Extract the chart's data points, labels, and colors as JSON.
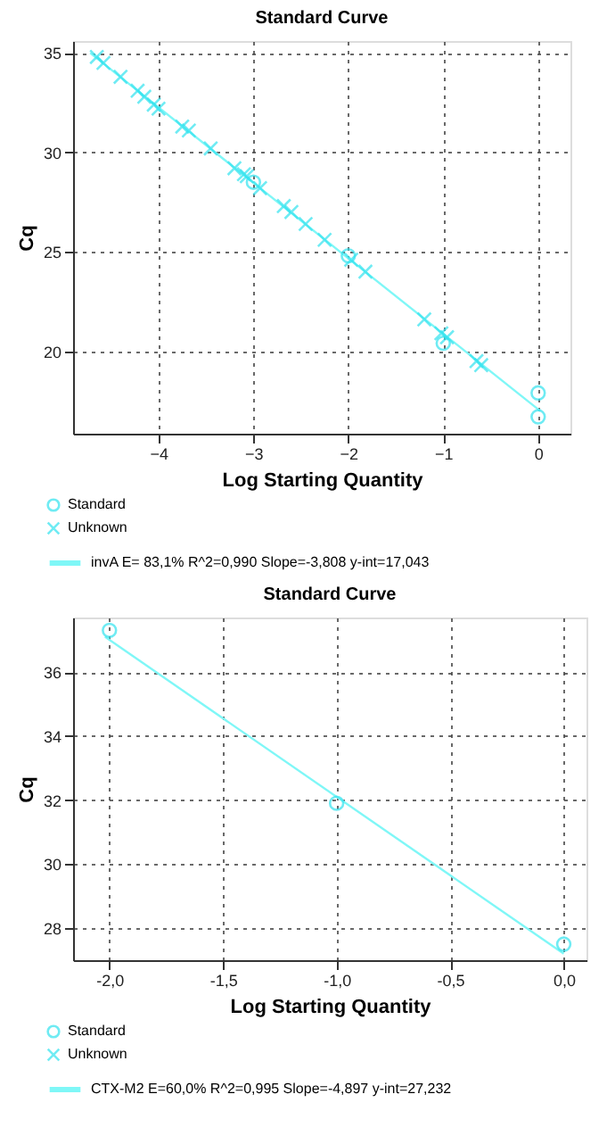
{
  "chart_data": [
    {
      "type": "scatter",
      "title": "Standard Curve",
      "xlabel": "Log Starting Quantity",
      "ylabel": "Cq",
      "xlim": [
        -4.9,
        0.34
      ],
      "ylim": [
        15.85,
        35.6
      ],
      "xticks": [
        -4,
        -3,
        -2,
        -1,
        0
      ],
      "yticks": [
        20,
        25,
        30,
        35
      ],
      "grid": true,
      "legend": "bottom",
      "series": [
        {
          "name": "invA  E= 83,1% R^2=0,990 Slope=-3,808 y-int=17,043",
          "type": "line",
          "color": "#7ff7f7",
          "line_style": "solid",
          "x": [
            -4.72,
            0.02
          ],
          "values": [
            35.0,
            17.0
          ]
        },
        {
          "name": "Standard",
          "marker": "circle",
          "color": "#33e3ef",
          "x": [
            -3,
            -2,
            -1,
            0,
            0
          ],
          "values": [
            28.5,
            24.8,
            20.4,
            17.9,
            16.7
          ]
        },
        {
          "name": "Unknown",
          "marker": "cross",
          "color": "#33e3ef",
          "x": [
            -4.65,
            -4.58,
            -4.4,
            -4.22,
            -4.15,
            -4.05,
            -4.0,
            -3.75,
            -3.68,
            -3.45,
            -3.2,
            -3.1,
            -3.07,
            -2.93,
            -2.68,
            -2.6,
            -2.45,
            -2.25,
            -1.97,
            -1.82,
            -1.2,
            -1.02,
            -0.96,
            -0.65,
            -0.6
          ],
          "values": [
            34.8,
            34.5,
            33.8,
            33.1,
            32.8,
            32.4,
            32.2,
            31.3,
            31.1,
            30.2,
            29.2,
            28.9,
            28.8,
            28.2,
            27.3,
            27.0,
            26.4,
            25.6,
            24.6,
            24.0,
            21.6,
            20.9,
            20.7,
            19.5,
            19.3
          ]
        }
      ]
    },
    {
      "type": "scatter",
      "title": "Standard Curve",
      "xlabel": "Log Starting Quantity",
      "ylabel": "Cq",
      "xlim": [
        -2.16,
        0.1
      ],
      "ylim": [
        27.0,
        37.7
      ],
      "xticks": [
        {
          "value": -2,
          "label": "-2,0"
        },
        {
          "value": -1.5,
          "label": "-1,5"
        },
        {
          "value": -1,
          "label": "-1,0"
        },
        {
          "value": -0.5,
          "label": "-0,5"
        },
        {
          "value": 0,
          "label": "0,0"
        }
      ],
      "yticks": [
        28,
        30,
        32,
        34,
        36
      ],
      "grid": true,
      "legend": "bottom",
      "series": [
        {
          "name": "CTX-M2  E=60,0% R^2=0,995 Slope=-4,897 y-int=27,232",
          "type": "line",
          "color": "#7ff7f7",
          "line_style": "solid",
          "x": [
            -2.02,
            0.0
          ],
          "values": [
            37.1,
            27.2
          ]
        },
        {
          "name": "Standard",
          "marker": "circle",
          "color": "#33e3ef",
          "x": [
            -2,
            -1,
            0
          ],
          "values": [
            37.3,
            31.9,
            27.5
          ]
        },
        {
          "name": "Unknown",
          "marker": "cross",
          "color": "#33e3ef"
        }
      ]
    }
  ]
}
